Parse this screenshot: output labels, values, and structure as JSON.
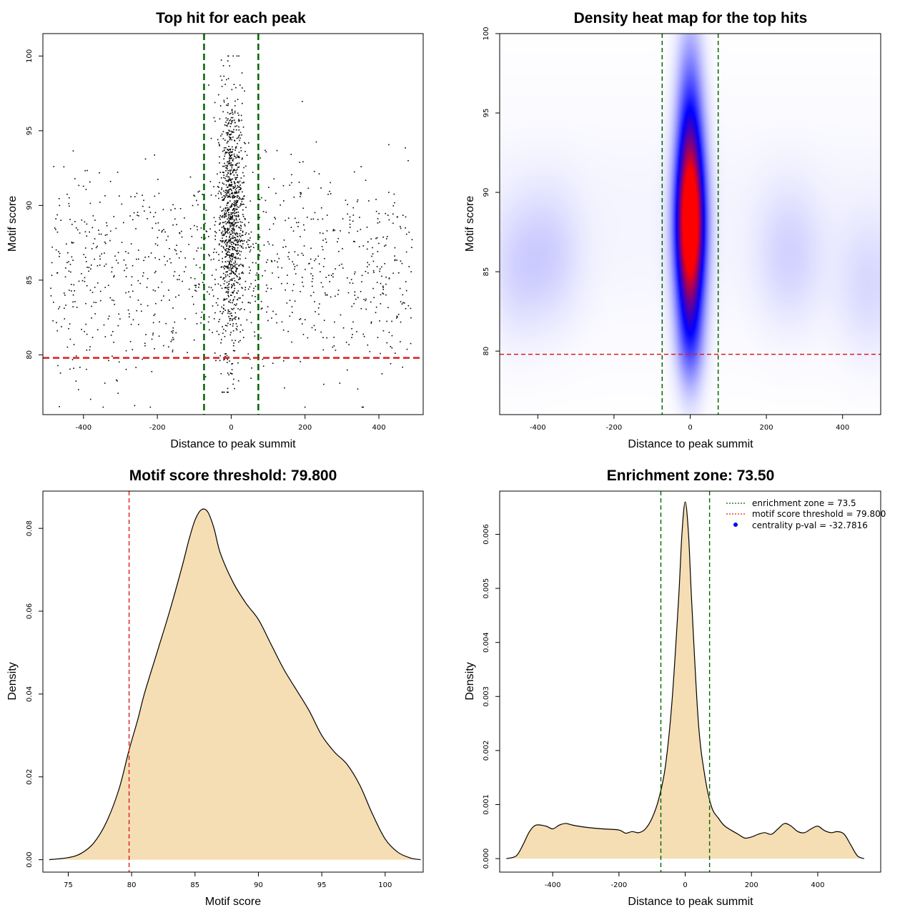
{
  "chart_data": [
    {
      "type": "scatter",
      "title": "Top hit for each peak",
      "xlabel": "Distance to peak summit",
      "ylabel": "Motif score",
      "xlim": [
        -510,
        520
      ],
      "ylim": [
        76,
        101.5
      ],
      "xticks": [
        -400,
        -200,
        0,
        200,
        400
      ],
      "yticks": [
        80,
        85,
        90,
        95,
        100
      ],
      "vlines": [
        -73.5,
        73.5
      ],
      "hline": 79.8,
      "colors": {
        "points": "#000000",
        "vlines": "#006400",
        "hline": "#dd1c1c"
      }
    },
    {
      "type": "heatmap",
      "title": "Density heat map for the top hits",
      "xlabel": "Distance to peak summit",
      "ylabel": "Motif score",
      "xlim": [
        -500,
        500
      ],
      "ylim": [
        76,
        100
      ],
      "xticks": [
        -400,
        -200,
        0,
        200,
        400
      ],
      "yticks": [
        80,
        85,
        90,
        95,
        100
      ],
      "vlines": [
        -73.5,
        73.5
      ],
      "hline": 79.8,
      "colors": {
        "low": "#ffffff",
        "mid": "#0000ff",
        "high": "#ff0000",
        "vlines": "#006400",
        "hline": "#dd1c1c"
      }
    },
    {
      "type": "area",
      "title": "Motif score threshold: 79.800",
      "xlabel": "Motif score",
      "ylabel": "Density",
      "xlim": [
        73,
        103
      ],
      "ylim": [
        -0.003,
        0.089
      ],
      "xticks": [
        75,
        80,
        85,
        90,
        95,
        100
      ],
      "yticks": [
        0.0,
        0.02,
        0.04,
        0.06,
        0.08
      ],
      "ytick_labels": [
        "0.00",
        "0.02",
        "0.04",
        "0.06",
        "0.08"
      ],
      "x": [
        73.5,
        75,
        76,
        77,
        78,
        79,
        79.8,
        80.5,
        81,
        82,
        83,
        84,
        84.5,
        85,
        85.5,
        86,
        86.5,
        87,
        88,
        89,
        90,
        91,
        92,
        93,
        94,
        95,
        96,
        97,
        98,
        99,
        100,
        101,
        102,
        102.8
      ],
      "values": [
        0,
        0.0005,
        0.0015,
        0.004,
        0.009,
        0.017,
        0.0265,
        0.034,
        0.04,
        0.05,
        0.06,
        0.071,
        0.077,
        0.082,
        0.0845,
        0.084,
        0.08,
        0.074,
        0.067,
        0.062,
        0.058,
        0.052,
        0.046,
        0.041,
        0.036,
        0.03,
        0.026,
        0.023,
        0.018,
        0.011,
        0.005,
        0.0018,
        0.0004,
        0
      ],
      "vline": 79.8,
      "colors": {
        "fill": "#f5deb3",
        "line": "#000000",
        "vline": "#dd1c1c"
      }
    },
    {
      "type": "area",
      "title": "Enrichment zone: 73.50",
      "xlabel": "Distance to peak summit",
      "ylabel": "Density",
      "xlim": [
        -560,
        590
      ],
      "ylim": [
        -0.00025,
        0.0068
      ],
      "xticks": [
        -400,
        -200,
        0,
        200,
        400
      ],
      "yticks": [
        0.0,
        0.001,
        0.002,
        0.003,
        0.004,
        0.005,
        0.006
      ],
      "ytick_labels": [
        "0.000",
        "0.001",
        "0.002",
        "0.003",
        "0.004",
        "0.005",
        "0.006"
      ],
      "x": [
        -540,
        -510,
        -490,
        -470,
        -450,
        -420,
        -400,
        -380,
        -360,
        -340,
        -300,
        -250,
        -200,
        -180,
        -160,
        -140,
        -120,
        -100,
        -80,
        -60,
        -40,
        -20,
        -10,
        0,
        10,
        20,
        40,
        60,
        80,
        100,
        120,
        160,
        180,
        200,
        220,
        240,
        260,
        280,
        300,
        320,
        340,
        360,
        380,
        400,
        420,
        440,
        460,
        480,
        500,
        520,
        540
      ],
      "values": [
        0,
        5e-05,
        0.00025,
        0.0005,
        0.00062,
        0.0006,
        0.00055,
        0.00062,
        0.00065,
        0.00062,
        0.00058,
        0.00055,
        0.00053,
        0.00047,
        0.0005,
        0.00048,
        0.00055,
        0.00075,
        0.0011,
        0.0017,
        0.0029,
        0.0048,
        0.006,
        0.0066,
        0.006,
        0.0047,
        0.0025,
        0.0015,
        0.00095,
        0.00075,
        0.0006,
        0.00045,
        0.00038,
        0.0004,
        0.00045,
        0.00048,
        0.00045,
        0.00055,
        0.00065,
        0.0006,
        0.0005,
        0.00048,
        0.00055,
        0.0006,
        0.00052,
        0.00048,
        0.0005,
        0.00045,
        0.00025,
        5e-05,
        0
      ],
      "vlines": [
        -73.5,
        73.5
      ],
      "legend": {
        "placement": "top-right",
        "entries": [
          {
            "label": "enrichment zone = 73.5",
            "color": "#006400",
            "style": "dotted"
          },
          {
            "label": "motif score threshold = 79.800",
            "color": "#dd1c1c",
            "style": "dotted"
          },
          {
            "label": "centrality p-val = -32.7816",
            "color": "#0000ff",
            "style": "point"
          }
        ]
      },
      "colors": {
        "fill": "#f5deb3",
        "line": "#000000",
        "vline": "#006400"
      }
    }
  ]
}
